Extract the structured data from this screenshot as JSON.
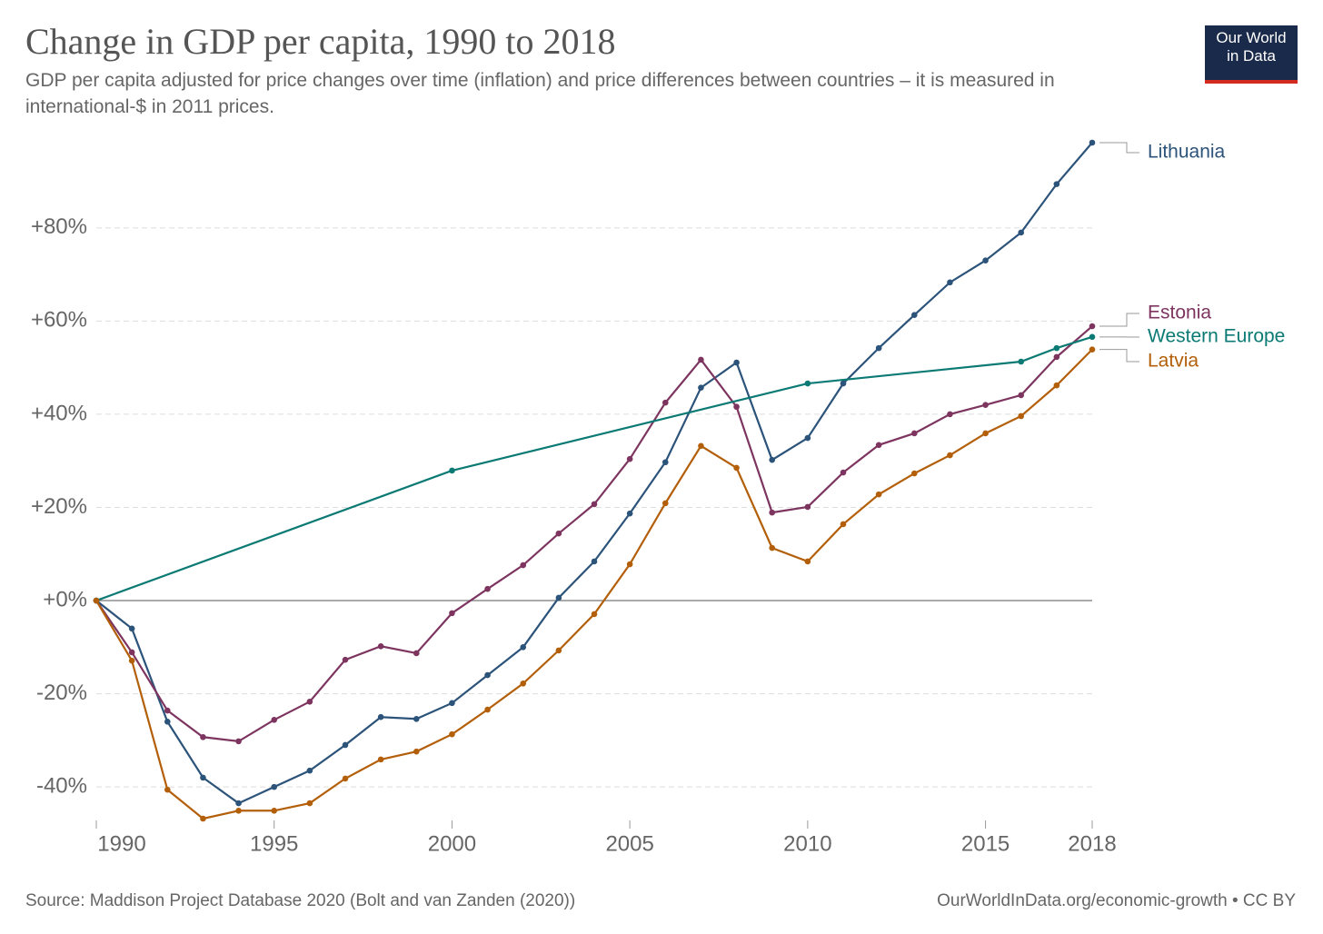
{
  "chart_data": {
    "type": "line",
    "title": "Change in GDP per capita, 1990 to 2018",
    "subtitle": "GDP per capita adjusted for price changes over time (inflation) and price differences between countries – it is measured in international-$ in 2011 prices.",
    "logo": "Our World in Data",
    "source": "Source: Maddison Project Database 2020 (Bolt and van Zanden (2020))",
    "credit": "OurWorldInData.org/economic-growth • CC BY",
    "x": [
      1990,
      1991,
      1992,
      1993,
      1994,
      1995,
      1996,
      1997,
      1998,
      1999,
      2000,
      2001,
      2002,
      2003,
      2004,
      2005,
      2006,
      2007,
      2008,
      2009,
      2010,
      2011,
      2012,
      2013,
      2014,
      2015,
      2016,
      2017,
      2018
    ],
    "xlim": [
      1990,
      2018
    ],
    "xticks": [
      1990,
      1995,
      2000,
      2005,
      2010,
      2015,
      2018
    ],
    "ylim": [
      -46.8,
      98.3
    ],
    "yticks": [
      {
        "value": -40,
        "label": "-40%"
      },
      {
        "value": -20,
        "label": "-20%"
      },
      {
        "value": 0,
        "label": "+0%"
      },
      {
        "value": 20,
        "label": "+20%"
      },
      {
        "value": 40,
        "label": "+40%"
      },
      {
        "value": 60,
        "label": "+60%"
      },
      {
        "value": 80,
        "label": "+80%"
      }
    ],
    "grid": true,
    "series": [
      {
        "name": "Lithuania",
        "color": "#2c5379",
        "values": [
          0,
          -6,
          -26,
          -38,
          -43.5,
          -40,
          -36.5,
          -31,
          -25,
          -25.4,
          -22,
          -16,
          -10,
          0.6,
          8.4,
          18.7,
          29.7,
          45.7,
          51.1,
          30.2,
          34.9,
          46.6,
          54.2,
          61.3,
          68.3,
          73,
          79,
          89.4,
          98.3
        ]
      },
      {
        "name": "Estonia",
        "color": "#7d3560",
        "values": [
          0,
          -11.1,
          -23.6,
          -29.3,
          -30.2,
          -25.6,
          -21.7,
          -12.7,
          -9.8,
          -11.3,
          -2.7,
          2.5,
          7.6,
          14.4,
          20.7,
          30.4,
          42.5,
          51.7,
          41.6,
          18.9,
          20.1,
          27.5,
          33.4,
          35.9,
          40,
          42,
          44.1,
          52.3,
          58.9
        ]
      },
      {
        "name": "Western Europe",
        "color": "#0c7a74",
        "x": [
          1990,
          2000,
          2010,
          2016,
          2017,
          2018
        ],
        "values": [
          0,
          27.9,
          46.6,
          51.3,
          54.2,
          56.6
        ]
      },
      {
        "name": "Latvia",
        "color": "#b35f0a",
        "values": [
          0,
          -12.9,
          -40.6,
          -46.8,
          -45.1,
          -45.1,
          -43.5,
          -38.2,
          -34.1,
          -32.4,
          -28.7,
          -23.4,
          -17.8,
          -10.7,
          -2.9,
          7.8,
          20.9,
          33.2,
          28.5,
          11.3,
          8.4,
          16.4,
          22.8,
          27.3,
          31.2,
          35.9,
          39.6,
          46.2,
          53.9
        ]
      }
    ]
  }
}
